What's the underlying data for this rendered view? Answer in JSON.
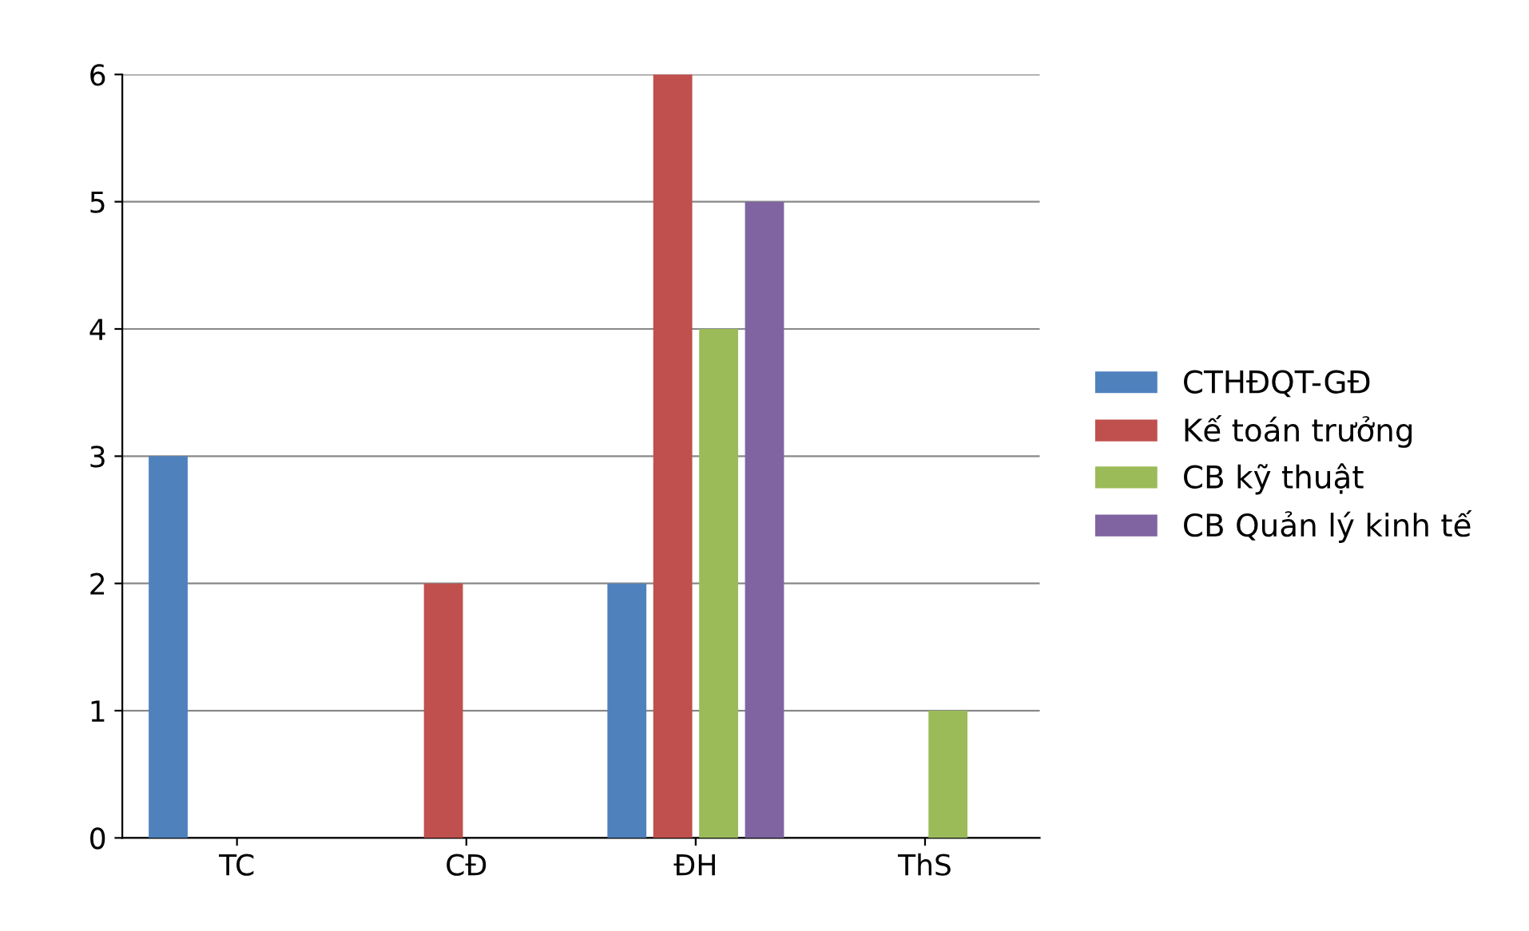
{
  "chart_data": {
    "type": "bar",
    "categories": [
      "TC",
      "CĐ",
      "ĐH",
      "ThS"
    ],
    "series": [
      {
        "name": "CTHĐQT-GĐ",
        "color": "#4f81bd",
        "values": [
          3,
          0,
          2,
          0
        ]
      },
      {
        "name": "Kế toán trưởng",
        "color": "#c0504d",
        "values": [
          0,
          2,
          6,
          0
        ]
      },
      {
        "name": "CB kỹ thuật",
        "color": "#9bbb59",
        "values": [
          0,
          0,
          4,
          1
        ]
      },
      {
        "name": "CB Quản lý kinh tế",
        "color": "#8064a2",
        "values": [
          0,
          0,
          5,
          0
        ]
      }
    ],
    "ylim": [
      0,
      6
    ],
    "yticks": [
      0,
      1,
      2,
      3,
      4,
      5,
      6
    ],
    "grid": "y",
    "legend": "right"
  }
}
